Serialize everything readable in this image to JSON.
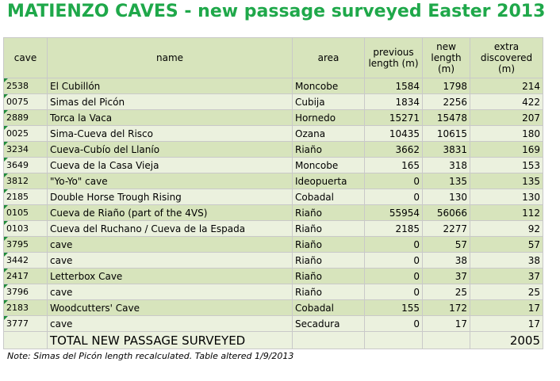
{
  "title": "MATIENZO CAVES - new passage surveyed Easter 2013",
  "headers": {
    "cave": "cave",
    "name": "name",
    "area": "area",
    "previous": "previous length (m)",
    "new": "new length (m)",
    "extra": "extra discovered (m)"
  },
  "rows": [
    {
      "cave": "2538",
      "name": "El Cubillón",
      "area": "Moncobe",
      "previous": "1584",
      "new": "1798",
      "extra": "214"
    },
    {
      "cave": "0075",
      "name": "Simas del Picón",
      "area": "Cubija",
      "previous": "1834",
      "new": "2256",
      "extra": "422"
    },
    {
      "cave": "2889",
      "name": "Torca la Vaca",
      "area": "Hornedo",
      "previous": "15271",
      "new": "15478",
      "extra": "207"
    },
    {
      "cave": "0025",
      "name": "Sima-Cueva del Risco",
      "area": "Ozana",
      "previous": "10435",
      "new": "10615",
      "extra": "180"
    },
    {
      "cave": "3234",
      "name": "Cueva-Cubío del Llanío",
      "area": "Riaño",
      "previous": "3662",
      "new": "3831",
      "extra": "169"
    },
    {
      "cave": "3649",
      "name": "Cueva de la Casa Vieja",
      "area": "Moncobe",
      "previous": "165",
      "new": "318",
      "extra": "153"
    },
    {
      "cave": "3812",
      "name": "\"Yo-Yo\" cave",
      "area": "Ideopuerta",
      "previous": "0",
      "new": "135",
      "extra": "135"
    },
    {
      "cave": "2185",
      "name": "Double Horse Trough Rising",
      "area": "Cobadal",
      "previous": "0",
      "new": "130",
      "extra": "130"
    },
    {
      "cave": "0105",
      "name": "Cueva de Riaño (part of the 4VS)",
      "area": "Riaño",
      "previous": "55954",
      "new": "56066",
      "extra": "112"
    },
    {
      "cave": "0103",
      "name": "Cueva del Ruchano / Cueva de la Espada",
      "area": "Riaño",
      "previous": "2185",
      "new": "2277",
      "extra": "92"
    },
    {
      "cave": "3795",
      "name": "cave",
      "area": "Riaño",
      "previous": "0",
      "new": "57",
      "extra": "57"
    },
    {
      "cave": "3442",
      "name": "cave",
      "area": "Riaño",
      "previous": "0",
      "new": "38",
      "extra": "38"
    },
    {
      "cave": "2417",
      "name": "Letterbox Cave",
      "area": "Riaño",
      "previous": "0",
      "new": "37",
      "extra": "37"
    },
    {
      "cave": "3796",
      "name": "cave",
      "area": "Riaño",
      "previous": "0",
      "new": "25",
      "extra": "25"
    },
    {
      "cave": "2183",
      "name": "Woodcutters' Cave",
      "area": "Cobadal",
      "previous": "155",
      "new": "172",
      "extra": "17"
    },
    {
      "cave": "3777",
      "name": "cave",
      "area": "Secadura",
      "previous": "0",
      "new": "17",
      "extra": "17"
    }
  ],
  "total": {
    "label": "TOTAL NEW PASSAGE SURVEYED",
    "value": "2005"
  },
  "note": "Note: Simas del Picón length recalculated. Table altered 1/9/2013",
  "colors": {
    "title": "#1fa84a",
    "row_dark": "#d7e4bc",
    "row_light": "#ebf1de"
  }
}
